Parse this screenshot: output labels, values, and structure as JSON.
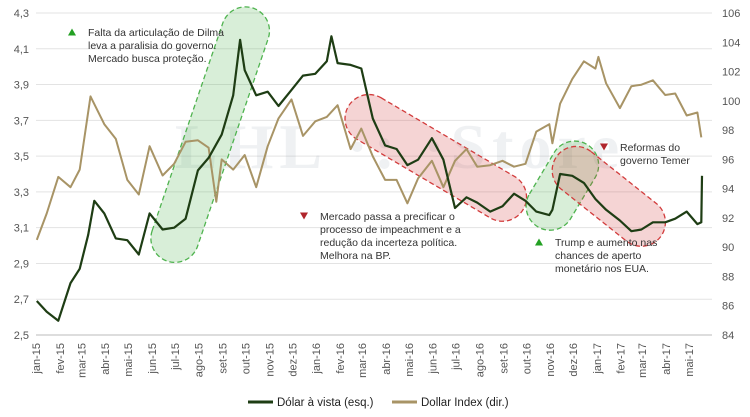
{
  "chart_data": {
    "type": "line",
    "y_left": {
      "min": 2.5,
      "max": 4.3,
      "ticks": [
        "2,5",
        "2,7",
        "2,9",
        "3,1",
        "3,3",
        "3,5",
        "3,7",
        "3,9",
        "4,1",
        "4,3"
      ]
    },
    "y_right": {
      "min": 84,
      "max": 106,
      "ticks": [
        "84",
        "86",
        "88",
        "90",
        "92",
        "94",
        "96",
        "98",
        "100",
        "102",
        "104",
        "106"
      ]
    },
    "x_axis": {
      "start": "2015-01",
      "end": "2017-05",
      "tick_labels": [
        "jan-15",
        "fev-15",
        "mar-15",
        "abr-15",
        "mai-15",
        "jun-15",
        "jul-15",
        "ago-15",
        "set-15",
        "out-15",
        "nov-15",
        "dez-15",
        "jan-16",
        "fev-16",
        "mar-16",
        "abr-16",
        "mai-16",
        "jun-16",
        "jul-16",
        "ago-16",
        "set-16",
        "out-16",
        "nov-16",
        "dez-16",
        "jan-17",
        "fev-17",
        "mar-17",
        "abr-17",
        "mai-17"
      ]
    },
    "series": [
      {
        "name": "Dólar à vista (esq.)",
        "axis": "left",
        "color": "#1e3d14",
        "points": [
          [
            "2015-01-02",
            2.69
          ],
          [
            "2015-01-15",
            2.63
          ],
          [
            "2015-01-30",
            2.58
          ],
          [
            "2015-02-15",
            2.79
          ],
          [
            "2015-02-27",
            2.87
          ],
          [
            "2015-03-10",
            3.06
          ],
          [
            "2015-03-18",
            3.25
          ],
          [
            "2015-03-31",
            3.18
          ],
          [
            "2015-04-15",
            3.04
          ],
          [
            "2015-04-30",
            3.03
          ],
          [
            "2015-05-15",
            2.95
          ],
          [
            "2015-05-29",
            3.18
          ],
          [
            "2015-06-15",
            3.09
          ],
          [
            "2015-06-30",
            3.1
          ],
          [
            "2015-07-15",
            3.15
          ],
          [
            "2015-07-31",
            3.42
          ],
          [
            "2015-08-14",
            3.49
          ],
          [
            "2015-08-31",
            3.62
          ],
          [
            "2015-09-15",
            3.84
          ],
          [
            "2015-09-24",
            4.15
          ],
          [
            "2015-09-30",
            3.98
          ],
          [
            "2015-10-15",
            3.84
          ],
          [
            "2015-10-30",
            3.86
          ],
          [
            "2015-11-13",
            3.78
          ],
          [
            "2015-11-30",
            3.87
          ],
          [
            "2015-12-15",
            3.95
          ],
          [
            "2015-12-31",
            3.96
          ],
          [
            "2016-01-15",
            4.03
          ],
          [
            "2016-01-21",
            4.17
          ],
          [
            "2016-01-29",
            4.02
          ],
          [
            "2016-02-15",
            4.01
          ],
          [
            "2016-02-29",
            3.99
          ],
          [
            "2016-03-15",
            3.71
          ],
          [
            "2016-03-31",
            3.56
          ],
          [
            "2016-04-15",
            3.54
          ],
          [
            "2016-04-29",
            3.45
          ],
          [
            "2016-05-13",
            3.48
          ],
          [
            "2016-05-31",
            3.6
          ],
          [
            "2016-06-15",
            3.48
          ],
          [
            "2016-06-30",
            3.21
          ],
          [
            "2016-07-15",
            3.27
          ],
          [
            "2016-07-29",
            3.24
          ],
          [
            "2016-08-15",
            3.19
          ],
          [
            "2016-08-31",
            3.22
          ],
          [
            "2016-09-15",
            3.29
          ],
          [
            "2016-09-30",
            3.25
          ],
          [
            "2016-10-14",
            3.19
          ],
          [
            "2016-10-31",
            3.17
          ],
          [
            "2016-11-04",
            3.2
          ],
          [
            "2016-11-14",
            3.4
          ],
          [
            "2016-11-30",
            3.39
          ],
          [
            "2016-12-15",
            3.35
          ],
          [
            "2016-12-30",
            3.26
          ],
          [
            "2017-01-13",
            3.2
          ],
          [
            "2017-01-31",
            3.14
          ],
          [
            "2017-02-15",
            3.08
          ],
          [
            "2017-02-28",
            3.09
          ],
          [
            "2017-03-15",
            3.13
          ],
          [
            "2017-03-31",
            3.13
          ],
          [
            "2017-04-13",
            3.15
          ],
          [
            "2017-04-28",
            3.19
          ],
          [
            "2017-05-12",
            3.12
          ],
          [
            "2017-05-17",
            3.13
          ],
          [
            "2017-05-18",
            3.39
          ]
        ]
      },
      {
        "name": "Dollar Index (dir.)",
        "axis": "right",
        "color": "#a89466",
        "points": [
          [
            "2015-01-02",
            90.5
          ],
          [
            "2015-01-15",
            92.3
          ],
          [
            "2015-01-30",
            94.8
          ],
          [
            "2015-02-15",
            94.1
          ],
          [
            "2015-02-27",
            95.3
          ],
          [
            "2015-03-13",
            100.3
          ],
          [
            "2015-03-31",
            98.4
          ],
          [
            "2015-04-15",
            97.4
          ],
          [
            "2015-04-30",
            94.6
          ],
          [
            "2015-05-15",
            93.6
          ],
          [
            "2015-05-29",
            96.9
          ],
          [
            "2015-06-15",
            94.9
          ],
          [
            "2015-06-30",
            95.7
          ],
          [
            "2015-07-15",
            97.2
          ],
          [
            "2015-07-31",
            97.3
          ],
          [
            "2015-08-14",
            96.8
          ],
          [
            "2015-08-24",
            93.1
          ],
          [
            "2015-08-31",
            96.0
          ],
          [
            "2015-09-15",
            95.3
          ],
          [
            "2015-09-30",
            96.3
          ],
          [
            "2015-10-15",
            94.1
          ],
          [
            "2015-10-30",
            96.9
          ],
          [
            "2015-11-13",
            98.8
          ],
          [
            "2015-11-30",
            100.1
          ],
          [
            "2015-12-15",
            97.6
          ],
          [
            "2015-12-31",
            98.6
          ],
          [
            "2016-01-15",
            98.9
          ],
          [
            "2016-01-29",
            99.7
          ],
          [
            "2016-02-15",
            96.7
          ],
          [
            "2016-02-29",
            98.1
          ],
          [
            "2016-03-15",
            96.2
          ],
          [
            "2016-03-31",
            94.6
          ],
          [
            "2016-04-15",
            94.6
          ],
          [
            "2016-04-29",
            93.0
          ],
          [
            "2016-05-13",
            94.7
          ],
          [
            "2016-05-31",
            95.9
          ],
          [
            "2016-06-15",
            94.1
          ],
          [
            "2016-06-30",
            95.9
          ],
          [
            "2016-07-15",
            96.7
          ],
          [
            "2016-07-29",
            95.5
          ],
          [
            "2016-08-15",
            95.6
          ],
          [
            "2016-08-31",
            95.9
          ],
          [
            "2016-09-15",
            95.5
          ],
          [
            "2016-09-30",
            95.7
          ],
          [
            "2016-10-14",
            97.9
          ],
          [
            "2016-10-31",
            98.4
          ],
          [
            "2016-11-04",
            97.1
          ],
          [
            "2016-11-14",
            99.8
          ],
          [
            "2016-11-30",
            101.5
          ],
          [
            "2016-12-15",
            102.7
          ],
          [
            "2016-12-30",
            102.2
          ],
          [
            "2017-01-03",
            103.0
          ],
          [
            "2017-01-13",
            101.2
          ],
          [
            "2017-01-31",
            99.5
          ],
          [
            "2017-02-15",
            101.0
          ],
          [
            "2017-02-28",
            101.1
          ],
          [
            "2017-03-15",
            101.4
          ],
          [
            "2017-03-31",
            100.4
          ],
          [
            "2017-04-13",
            100.5
          ],
          [
            "2017-04-28",
            99.0
          ],
          [
            "2017-05-12",
            99.2
          ],
          [
            "2017-05-17",
            97.5
          ]
        ]
      }
    ],
    "annotations": [
      {
        "marker": "up",
        "text_lines": [
          "Falta da articulação de Dilma",
          "leva a paralisia do governo.",
          "Mercado busca proteção."
        ]
      },
      {
        "marker": "down",
        "text_lines": [
          "Mercado passa a precificar o",
          "processo de impeachment e a",
          "redução da incerteza política.",
          "Melhora na BP."
        ]
      },
      {
        "marker": "up",
        "text_lines": [
          "Trump e aumento nas",
          "chances de aperto",
          "monetário nos EUA."
        ]
      },
      {
        "marker": "down",
        "text_lines": [
          "Reformas do",
          "governo Temer"
        ]
      }
    ],
    "highlight_periods": [
      {
        "color": "#4fb34f",
        "start": "2015-07-01",
        "end": "2015-10-01",
        "y_start": 3.04,
        "y_end": 4.2
      },
      {
        "color": "#d23c3c",
        "start": "2016-03-10",
        "end": "2016-08-31",
        "y_start": 3.71,
        "y_end": 3.27
      },
      {
        "color": "#4fb34f",
        "start": "2016-11-01",
        "end": "2016-12-03",
        "y_start": 3.22,
        "y_end": 3.45
      },
      {
        "color": "#d23c3c",
        "start": "2016-12-05",
        "end": "2017-02-28",
        "y_start": 3.42,
        "y_end": 3.13
      }
    ],
    "watermark": "LHL ·: ·Store",
    "legend": {
      "position": "bottom-center"
    },
    "colors": {
      "up_marker": "#23a023",
      "down_marker": "#b0252c"
    }
  }
}
